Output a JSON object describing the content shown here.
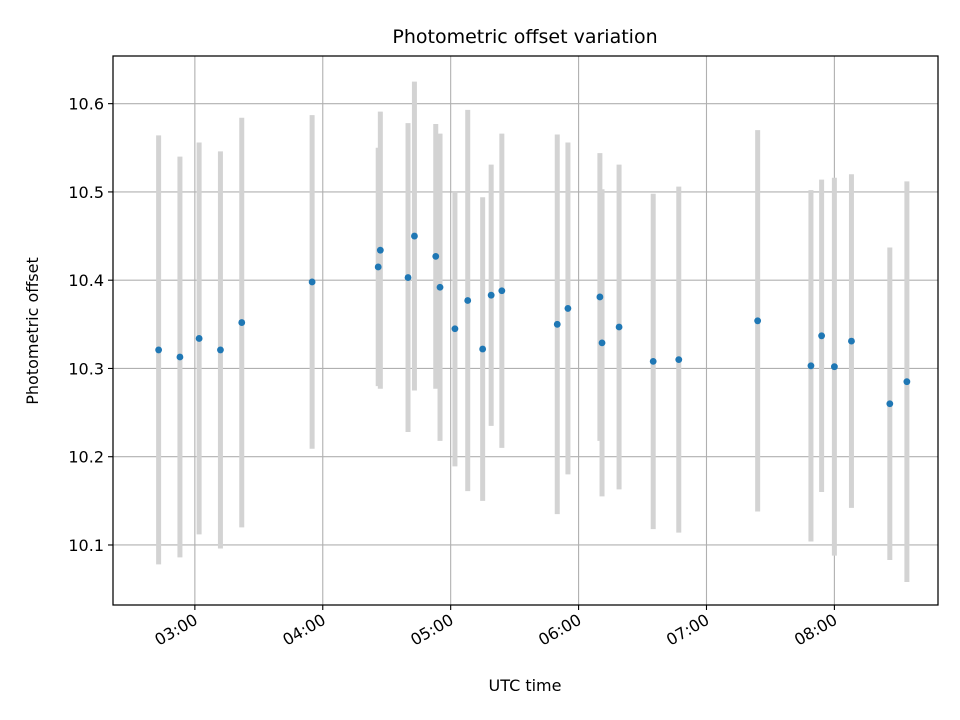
{
  "chart_data": {
    "type": "scatter",
    "title": "Photometric offset variation",
    "xlabel": "UTC time",
    "ylabel": "Photometric offset",
    "x_tick_labels": [
      "03:00",
      "04:00",
      "05:00",
      "06:00",
      "07:00",
      "08:00"
    ],
    "x_ticks_hours": [
      3,
      4,
      5,
      6,
      7,
      8
    ],
    "xlim_hours": [
      2.36,
      8.81
    ],
    "y_ticks": [
      10.1,
      10.2,
      10.3,
      10.4,
      10.5,
      10.6
    ],
    "y_tick_labels": [
      "10.1",
      "10.2",
      "10.3",
      "10.4",
      "10.5",
      "10.6"
    ],
    "ylim": [
      10.032,
      10.654
    ],
    "grid": true,
    "marker_color": "#1f77b4",
    "errorbar_color": "#d3d3d3",
    "series": [
      {
        "points": [
          {
            "t": "02:43",
            "y": 10.321,
            "err": 0.243
          },
          {
            "t": "02:53",
            "y": 10.313,
            "err": 0.227
          },
          {
            "t": "03:02",
            "y": 10.334,
            "err": 0.222
          },
          {
            "t": "03:12",
            "y": 10.321,
            "err": 0.225
          },
          {
            "t": "03:22",
            "y": 10.352,
            "err": 0.232
          },
          {
            "t": "03:55",
            "y": 10.398,
            "err": 0.189
          },
          {
            "t": "04:26",
            "y": 10.415,
            "err": 0.135
          },
          {
            "t": "04:27",
            "y": 10.434,
            "err": 0.157
          },
          {
            "t": "04:40",
            "y": 10.403,
            "err": 0.175
          },
          {
            "t": "04:43",
            "y": 10.45,
            "err": 0.175
          },
          {
            "t": "04:53",
            "y": 10.427,
            "err": 0.15
          },
          {
            "t": "04:55",
            "y": 10.392,
            "err": 0.174
          },
          {
            "t": "05:02",
            "y": 10.345,
            "err": 0.156
          },
          {
            "t": "05:08",
            "y": 10.377,
            "err": 0.216
          },
          {
            "t": "05:15",
            "y": 10.322,
            "err": 0.172
          },
          {
            "t": "05:19",
            "y": 10.383,
            "err": 0.148
          },
          {
            "t": "05:24",
            "y": 10.388,
            "err": 0.178
          },
          {
            "t": "05:50",
            "y": 10.35,
            "err": 0.215
          },
          {
            "t": "05:55",
            "y": 10.368,
            "err": 0.188
          },
          {
            "t": "06:10",
            "y": 10.381,
            "err": 0.163
          },
          {
            "t": "06:11",
            "y": 10.329,
            "err": 0.174
          },
          {
            "t": "06:19",
            "y": 10.347,
            "err": 0.184
          },
          {
            "t": "06:35",
            "y": 10.308,
            "err": 0.19
          },
          {
            "t": "06:47",
            "y": 10.31,
            "err": 0.196
          },
          {
            "t": "07:24",
            "y": 10.354,
            "err": 0.216
          },
          {
            "t": "07:49",
            "y": 10.303,
            "err": 0.199
          },
          {
            "t": "07:54",
            "y": 10.337,
            "err": 0.177
          },
          {
            "t": "08:00",
            "y": 10.302,
            "err": 0.214
          },
          {
            "t": "08:08",
            "y": 10.331,
            "err": 0.189
          },
          {
            "t": "08:26",
            "y": 10.26,
            "err": 0.177
          },
          {
            "t": "08:34",
            "y": 10.285,
            "err": 0.227
          }
        ]
      }
    ]
  }
}
